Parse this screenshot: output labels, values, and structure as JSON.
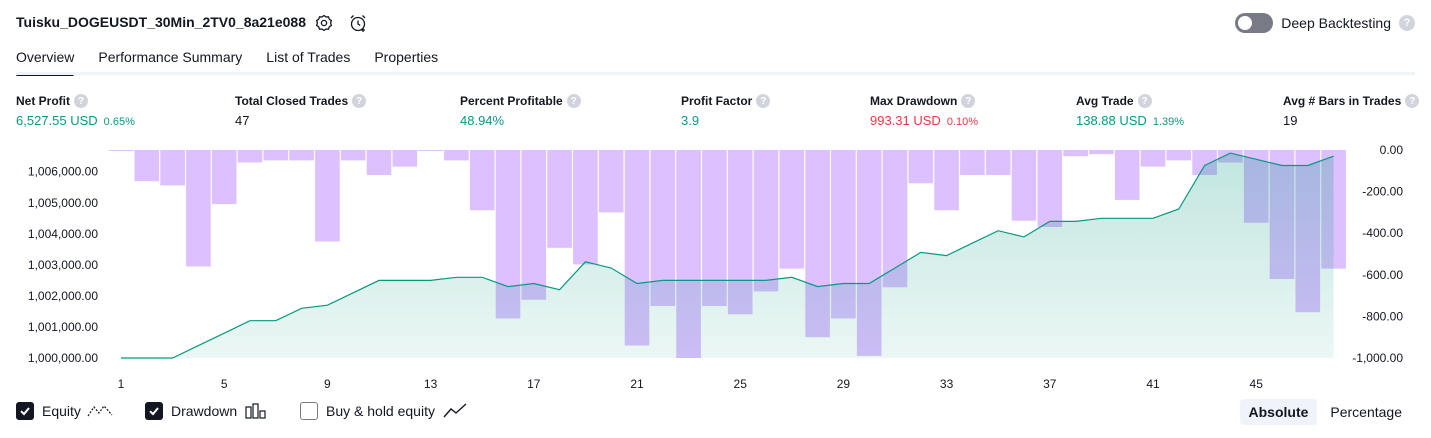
{
  "header": {
    "title": "Tuisku_DOGEUSDT_30Min_2TV0_8a21e088",
    "deep_backtesting_label": "Deep Backtesting",
    "help_glyph": "?"
  },
  "tabs": [
    {
      "label": "Overview",
      "active": true
    },
    {
      "label": "Performance Summary",
      "active": false
    },
    {
      "label": "List of Trades",
      "active": false
    },
    {
      "label": "Properties",
      "active": false
    }
  ],
  "metrics": [
    {
      "label": "Net Profit",
      "value": "6,527.55 USD",
      "pct": "0.65%",
      "color": "#089981"
    },
    {
      "label": "Total Closed Trades",
      "value": "47",
      "pct": "",
      "color": "#131722"
    },
    {
      "label": "Percent Profitable",
      "value": "48.94%",
      "pct": "",
      "color": "#089981"
    },
    {
      "label": "Profit Factor",
      "value": "3.9",
      "pct": "",
      "color": "#089981"
    },
    {
      "label": "Max Drawdown",
      "value": "993.31 USD",
      "pct": "0.10%",
      "color": "#f23645"
    },
    {
      "label": "Avg Trade",
      "value": "138.88 USD",
      "pct": "1.39%",
      "color": "#089981"
    },
    {
      "label": "Avg # Bars in Trades",
      "value": "19",
      "pct": "",
      "color": "#131722"
    }
  ],
  "chart_data": {
    "type": "area",
    "x_ticks": [
      "1",
      "5",
      "9",
      "13",
      "17",
      "21",
      "25",
      "29",
      "33",
      "37",
      "41",
      "45"
    ],
    "left_axis_ticks": [
      "1,006,000.00",
      "1,005,000.00",
      "1,004,000.00",
      "1,003,000.00",
      "1,002,000.00",
      "1,001,000.00",
      "1,000,000.00"
    ],
    "right_axis_ticks": [
      "0.00",
      "-200.00",
      "-400.00",
      "-600.00",
      "-800.00",
      "-1,000.00"
    ],
    "left_ylim": [
      1000000,
      1006700
    ],
    "right_ylim": [
      -1000,
      0
    ],
    "x": [
      1,
      2,
      3,
      4,
      5,
      6,
      7,
      8,
      9,
      10,
      11,
      12,
      13,
      14,
      15,
      16,
      17,
      18,
      19,
      20,
      21,
      22,
      23,
      24,
      25,
      26,
      27,
      28,
      29,
      30,
      31,
      32,
      33,
      34,
      35,
      36,
      37,
      38,
      39,
      40,
      41,
      42,
      43,
      44,
      45,
      46,
      47,
      48
    ],
    "equity": [
      1000000,
      1000000,
      1000000,
      1000400,
      1000800,
      1001200,
      1001200,
      1001600,
      1001700,
      1002100,
      1002500,
      1002500,
      1002500,
      1002600,
      1002600,
      1002300,
      1002400,
      1002200,
      1003100,
      1002900,
      1002400,
      1002500,
      1002500,
      1002500,
      1002500,
      1002500,
      1002600,
      1002300,
      1002400,
      1002400,
      1002900,
      1003400,
      1003300,
      1003700,
      1004100,
      1003900,
      1004400,
      1004400,
      1004500,
      1004500,
      1004500,
      1004800,
      1006200,
      1006600,
      1006400,
      1006200,
      1006200,
      1006500
    ],
    "drawdown": [
      0,
      -150,
      -170,
      -560,
      -260,
      -60,
      -50,
      -50,
      -440,
      -50,
      -120,
      -80,
      0,
      -50,
      -290,
      -810,
      -720,
      -470,
      -550,
      -300,
      -940,
      -750,
      -1000,
      -750,
      -790,
      -680,
      -570,
      -900,
      -810,
      -990,
      -660,
      -160,
      -290,
      -120,
      -120,
      -340,
      -370,
      -30,
      -20,
      -240,
      -80,
      -50,
      -120,
      -60,
      -350,
      -620,
      -780,
      -570
    ],
    "series": [
      {
        "name": "Equity",
        "color": "#089981"
      },
      {
        "name": "Drawdown",
        "color": "#b388ff"
      },
      {
        "name": "Buy & hold equity",
        "color": "#131722"
      }
    ]
  },
  "legend": {
    "equity": {
      "label": "Equity",
      "checked": true
    },
    "drawdown": {
      "label": "Drawdown",
      "checked": true
    },
    "buyhold": {
      "label": "Buy & hold equity",
      "checked": false
    }
  },
  "mode": {
    "absolute": "Absolute",
    "percentage": "Percentage",
    "selected": "Absolute"
  }
}
